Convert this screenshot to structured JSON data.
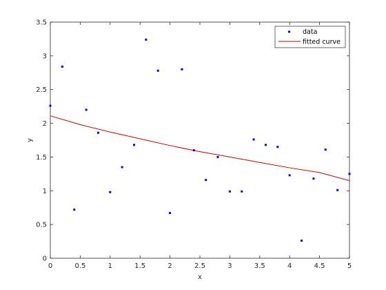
{
  "chart_data": {
    "type": "scatter",
    "xlabel": "x",
    "ylabel": "y",
    "xlim": [
      0,
      5
    ],
    "ylim": [
      0,
      3.5
    ],
    "xticks": [
      0,
      0.5,
      1,
      1.5,
      2,
      2.5,
      3,
      3.5,
      4,
      4.5,
      5
    ],
    "xtick_labels": [
      "0",
      "0.5",
      "1",
      "1.5",
      "2",
      "2.5",
      "3",
      "3.5",
      "4",
      "4.5",
      "5"
    ],
    "yticks": [
      0,
      0.5,
      1,
      1.5,
      2,
      2.5,
      3,
      3.5
    ],
    "ytick_labels": [
      "0",
      "0.5",
      "1",
      "1.5",
      "2",
      "2.5",
      "3",
      "3.5"
    ],
    "grid": false,
    "legend_position": "top-right",
    "series": [
      {
        "name": "data",
        "kind": "scatter",
        "color": "#0000ff",
        "x": [
          0,
          0.2,
          0.4,
          0.6,
          0.8,
          1.0,
          1.2,
          1.4,
          1.6,
          1.8,
          2.0,
          2.2,
          2.4,
          2.6,
          2.8,
          3.0,
          3.2,
          3.4,
          3.6,
          3.8,
          4.0,
          4.2,
          4.4,
          4.6,
          4.8,
          5.0
        ],
        "y": [
          2.26,
          2.84,
          0.72,
          2.2,
          1.86,
          0.98,
          1.35,
          1.68,
          3.24,
          2.78,
          0.67,
          2.8,
          1.6,
          1.16,
          1.5,
          0.99,
          0.99,
          1.76,
          1.68,
          1.65,
          1.23,
          0.26,
          1.18,
          1.61,
          1.01,
          1.25
        ]
      },
      {
        "name": "fitted curve",
        "kind": "line",
        "color": "#cc0000",
        "x": [
          0,
          0.5,
          1,
          1.5,
          2,
          2.5,
          3,
          3.5,
          4,
          4.5,
          5
        ],
        "y": [
          2.11,
          1.98,
          1.87,
          1.77,
          1.67,
          1.58,
          1.5,
          1.42,
          1.34,
          1.27,
          1.15
        ]
      }
    ]
  }
}
